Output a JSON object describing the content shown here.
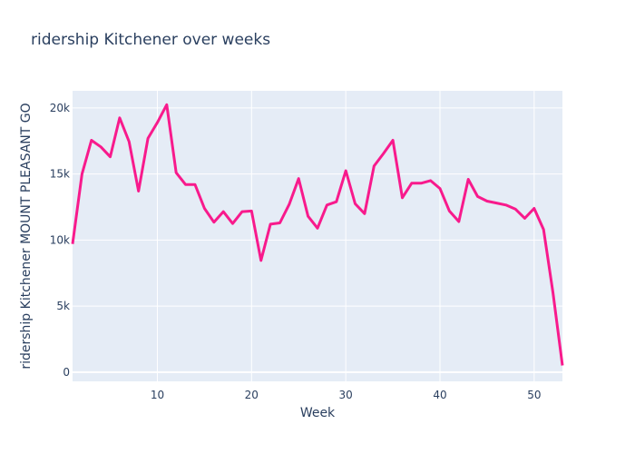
{
  "chart_data": {
    "type": "line",
    "title": "ridership Kitchener over weeks",
    "xlabel": "Week",
    "ylabel": "ridership Kitchener MOUNT PLEASANT GO",
    "xlim": [
      1,
      53
    ],
    "ylim": [
      -700,
      21300
    ],
    "x_ticks": [
      10,
      20,
      30,
      40,
      50
    ],
    "y_ticks": [
      0,
      5000,
      10000,
      15000,
      20000
    ],
    "x_tick_labels": [
      "10",
      "20",
      "30",
      "40",
      "50"
    ],
    "y_tick_labels": [
      "0",
      "5k",
      "10k",
      "15k",
      "20k"
    ],
    "grid": true,
    "colors": {
      "line": "#f81a8c",
      "plot_bg": "#e5ecf6",
      "grid": "#ffffff",
      "text": "#2a3f5f"
    },
    "series": [
      {
        "x": [
          1,
          2,
          3,
          4,
          5,
          6,
          7,
          8,
          9,
          10,
          11,
          12,
          13,
          14,
          15,
          16,
          17,
          18,
          19,
          20,
          21,
          22,
          23,
          24,
          25,
          26,
          27,
          28,
          29,
          30,
          31,
          32,
          33,
          34,
          35,
          36,
          37,
          38,
          39,
          40,
          41,
          42,
          43,
          44,
          45,
          46,
          47,
          48,
          49,
          50,
          51,
          52,
          53
        ],
        "y": [
          9700,
          15000,
          17550,
          17050,
          16300,
          19250,
          17450,
          13700,
          17700,
          18900,
          20250,
          15100,
          14200,
          14200,
          12400,
          11350,
          12150,
          11250,
          12150,
          12200,
          8450,
          11200,
          11300,
          12700,
          14650,
          11800,
          10900,
          12650,
          12900,
          15250,
          12750,
          12000,
          15600,
          16550,
          17550,
          13200,
          14300,
          14300,
          14500,
          13900,
          12200,
          11400,
          14600,
          13300,
          12950,
          12800,
          12650,
          12350,
          11650,
          12400,
          10800,
          6000,
          500
        ]
      }
    ]
  }
}
